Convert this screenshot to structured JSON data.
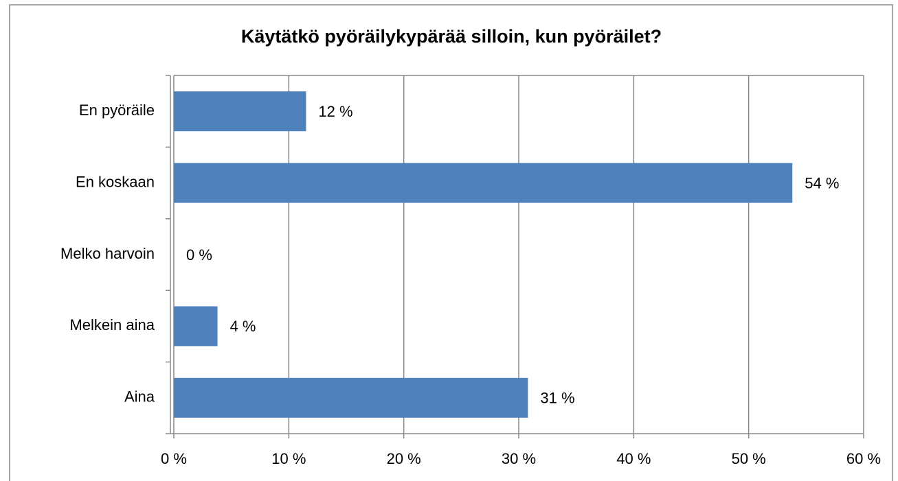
{
  "chart_data": {
    "type": "hbar",
    "title": "Käytätkö pyöräilykypärää silloin, kun pyöräilet?",
    "categories": [
      "En pyöräile",
      "En koskaan",
      "Melko harvoin",
      "Melkein aina",
      "Aina"
    ],
    "values": [
      11.5,
      53.8,
      0,
      3.8,
      30.8
    ],
    "value_labels": [
      "12 %",
      "54 %",
      "0 %",
      "4 %",
      "31 %"
    ],
    "color": "#4f81bd",
    "xlim": [
      0,
      60
    ],
    "xticks": [
      {
        "value": 0,
        "label": "0 %"
      },
      {
        "value": 10,
        "label": "10 %"
      },
      {
        "value": 20,
        "label": "20 %"
      },
      {
        "value": 30,
        "label": "30 %"
      },
      {
        "value": 40,
        "label": "40 %"
      },
      {
        "value": 50,
        "label": "50 %"
      },
      {
        "value": 60,
        "label": "60 %"
      }
    ],
    "grid": true
  }
}
